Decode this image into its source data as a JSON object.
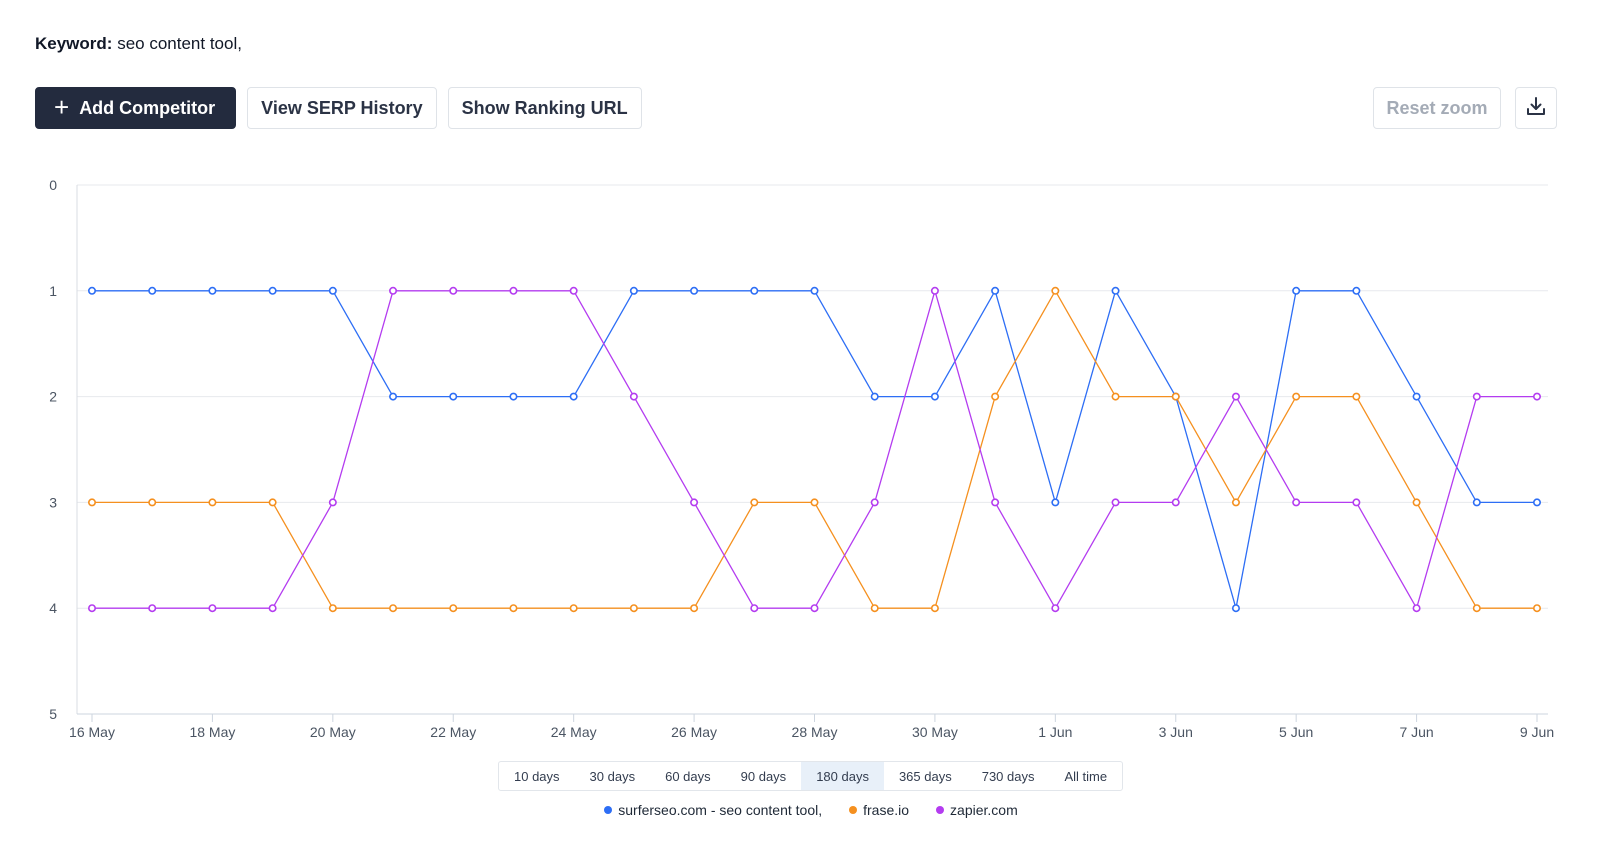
{
  "keyword": {
    "label": "Keyword:",
    "value": "seo content tool,"
  },
  "toolbar": {
    "add_competitor": "Add Competitor",
    "view_serp_history": "View SERP History",
    "show_ranking_url": "Show Ranking URL",
    "reset_zoom": "Reset zoom"
  },
  "ranges": {
    "options": [
      "10 days",
      "30 days",
      "60 days",
      "90 days",
      "180 days",
      "365 days",
      "730 days",
      "All time"
    ],
    "active": "180 days"
  },
  "chart_data": {
    "type": "line",
    "x": [
      "16 May",
      "17 May",
      "18 May",
      "19 May",
      "20 May",
      "21 May",
      "22 May",
      "23 May",
      "24 May",
      "25 May",
      "26 May",
      "27 May",
      "28 May",
      "29 May",
      "30 May",
      "31 May",
      "1 Jun",
      "2 Jun",
      "3 Jun",
      "4 Jun",
      "5 Jun",
      "6 Jun",
      "7 Jun",
      "8 Jun",
      "9 Jun"
    ],
    "x_tick_labels": [
      "16 May",
      "18 May",
      "20 May",
      "22 May",
      "24 May",
      "26 May",
      "28 May",
      "30 May",
      "1 Jun",
      "3 Jun",
      "5 Jun",
      "7 Jun",
      "9 Jun"
    ],
    "y_tick_labels": [
      "0",
      "1",
      "2",
      "3",
      "4",
      "5"
    ],
    "ylim": [
      0,
      5
    ],
    "y_reversed": true,
    "grid": true,
    "legend_position": "bottom-center",
    "series": [
      {
        "name": "surferseo.com - seo content tool,",
        "color": "#2d6ef5",
        "values": [
          1,
          1,
          1,
          1,
          1,
          2,
          2,
          2,
          2,
          1,
          1,
          1,
          1,
          2,
          2,
          1,
          3,
          1,
          2,
          4,
          1,
          1,
          2,
          3,
          3
        ]
      },
      {
        "name": "frase.io",
        "color": "#f5901f",
        "values": [
          3,
          3,
          3,
          3,
          4,
          4,
          4,
          4,
          4,
          4,
          4,
          3,
          3,
          4,
          4,
          2,
          1,
          2,
          2,
          3,
          2,
          2,
          3,
          4,
          4
        ]
      },
      {
        "name": "zapier.com",
        "color": "#b43cf0",
        "values": [
          4,
          4,
          4,
          4,
          3,
          1,
          1,
          1,
          1,
          2,
          3,
          4,
          4,
          3,
          1,
          3,
          4,
          3,
          3,
          2,
          3,
          3,
          4,
          2,
          2
        ]
      }
    ]
  }
}
